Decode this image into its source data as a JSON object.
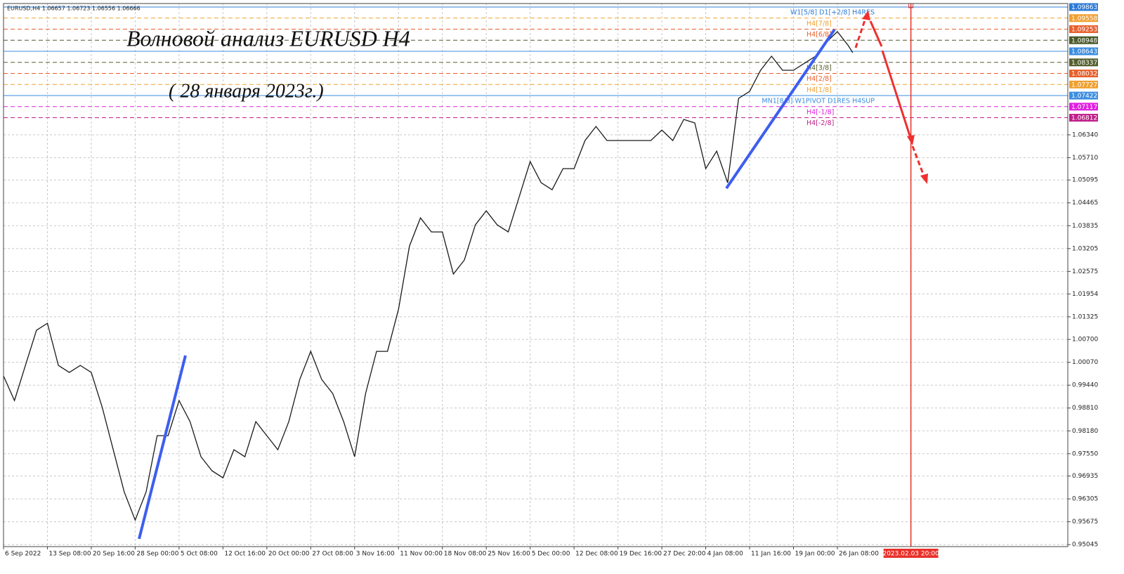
{
  "chart_data": {
    "type": "line",
    "info": "EURUSD,H4  1.06657 1.06723 1.06556 1.06666",
    "title": "Волновой анализ EURUSD H4",
    "subtitle": "( 28 января 2023г.)",
    "series": [
      {
        "color": "#1a1a1a",
        "x": [
          0,
          10,
          20,
          30,
          40,
          50,
          60,
          70,
          80,
          90,
          100,
          110,
          120,
          130,
          140,
          150,
          160,
          170,
          180,
          190,
          200,
          210,
          220,
          230,
          240,
          250,
          260,
          270,
          280,
          290,
          300,
          310,
          320,
          330,
          340,
          350,
          360,
          370,
          380,
          390,
          400,
          410,
          420,
          430,
          440,
          450,
          460,
          470,
          480,
          490,
          500,
          510,
          520,
          530,
          540,
          550,
          560,
          570,
          580,
          590,
          600,
          610,
          620,
          630,
          640,
          650,
          660,
          670,
          680,
          690,
          700,
          710,
          720,
          730,
          740,
          750,
          760,
          770,
          774
        ],
        "values": [
          0.99694,
          0.99016,
          0.99984,
          1.00953,
          1.01146,
          0.99984,
          0.99791,
          0.99984,
          0.99791,
          0.98822,
          0.9766,
          0.96498,
          0.95723,
          0.96498,
          0.98047,
          0.98047,
          0.99016,
          0.98435,
          0.97466,
          0.97079,
          0.96885,
          0.9766,
          0.97466,
          0.98435,
          0.98047,
          0.9766,
          0.98435,
          0.99597,
          1.00372,
          0.99597,
          0.99209,
          0.98435,
          0.97466,
          0.99209,
          1.00372,
          1.00372,
          1.01534,
          1.03277,
          1.04052,
          1.03665,
          1.03665,
          1.02502,
          1.0289,
          1.03858,
          1.04246,
          1.03858,
          1.03665,
          1.04633,
          1.05602,
          1.0502,
          1.04827,
          1.05408,
          1.05408,
          1.06183,
          1.0657,
          1.06183,
          1.06183,
          1.06183,
          1.06183,
          1.06183,
          1.06473,
          1.06183,
          1.06764,
          1.06667,
          1.05408,
          1.05892,
          1.0502,
          1.07345,
          1.07539,
          1.0812,
          1.08507,
          1.0812,
          1.0812,
          1.08313,
          1.08507,
          1.08894,
          1.09185,
          1.08798,
          1.08604
        ]
      }
    ],
    "xlim": [
      0,
      970
    ],
    "xticks": [
      {
        "value": 0,
        "label": "6 Sep 2022"
      },
      {
        "value": 40,
        "label": "13 Sep 08:00"
      },
      {
        "value": 80,
        "label": "20 Sep 16:00"
      },
      {
        "value": 120,
        "label": "28 Sep 00:00"
      },
      {
        "value": 160,
        "label": "5 Oct 08:00"
      },
      {
        "value": 200,
        "label": "12 Oct 16:00"
      },
      {
        "value": 240,
        "label": "20 Oct 00:00"
      },
      {
        "value": 280,
        "label": "27 Oct 08:00"
      },
      {
        "value": 320,
        "label": "3 Nov 16:00"
      },
      {
        "value": 360,
        "label": "11 Nov 00:00"
      },
      {
        "value": 400,
        "label": "18 Nov 08:00"
      },
      {
        "value": 440,
        "label": "25 Nov 16:00"
      },
      {
        "value": 480,
        "label": "5 Dec 00:00"
      },
      {
        "value": 520,
        "label": "12 Dec 08:00"
      },
      {
        "value": 560,
        "label": "19 Dec 16:00"
      },
      {
        "value": 600,
        "label": "27 Dec 20:00"
      },
      {
        "value": 640,
        "label": "4 Jan 08:00"
      },
      {
        "value": 680,
        "label": "11 Jan 16:00"
      },
      {
        "value": 720,
        "label": "19 Jan 00:00"
      },
      {
        "value": 760,
        "label": "26 Jan 08:00"
      }
    ],
    "ylim": [
      0.9499,
      1.0996
    ],
    "yticks": [
      0.95045,
      0.95675,
      0.96305,
      0.96935,
      {
        "value": 0.9755,
        "label": "0.97550"
      },
      {
        "value": 0.9818,
        "label": "0.98180"
      },
      {
        "value": 0.9881,
        "label": "0.98810"
      },
      {
        "value": 0.9944,
        "label": "0.99440"
      },
      {
        "value": 1.0007,
        "label": "1.00070"
      },
      {
        "value": 1.007,
        "label": "1.00700"
      },
      1.01325,
      1.01954,
      1.02575,
      1.03205,
      1.03835,
      1.04465,
      1.05095,
      {
        "value": 1.0571,
        "label": "1.05710"
      },
      {
        "value": 1.0634,
        "label": "1.06340"
      }
    ],
    "grid": true,
    "levels": [
      {
        "value": 1.09863,
        "color": "#2b7bd6",
        "name": "W1[5/8] D1[+2/8] H4RES"
      },
      {
        "value": 1.09558,
        "color": "#f0a030",
        "name": "H4[7/8]"
      },
      {
        "value": 1.09253,
        "color": "#e8602c",
        "name": "H4[6/8]"
      },
      {
        "value": 1.08948,
        "color": "#4a5a2a"
      },
      {
        "value": 1.08643,
        "color": "#3a8de0"
      },
      {
        "value": 1.08337,
        "color": "#55602e",
        "name": "H4[3/8]"
      },
      {
        "value": 1.08032,
        "color": "#e8602c",
        "name": "H4[2/8]"
      },
      {
        "value": 1.07727,
        "color": "#f0a030",
        "name": "H4[1/8]"
      },
      {
        "value": 1.07422,
        "color": "#3a8de0",
        "name": "MN1[8/8] W1PIVOT D1RES H4SUP"
      },
      {
        "value": 1.07117,
        "color": "#e020e0",
        "name": "H4[-1/8]"
      },
      {
        "value": 1.06812,
        "color": "#c0208a",
        "name": "H4[-2/8]"
      }
    ],
    "vline": {
      "x": 827,
      "label": "2023.02.03 20:00",
      "color": "#e8312a"
    }
  }
}
